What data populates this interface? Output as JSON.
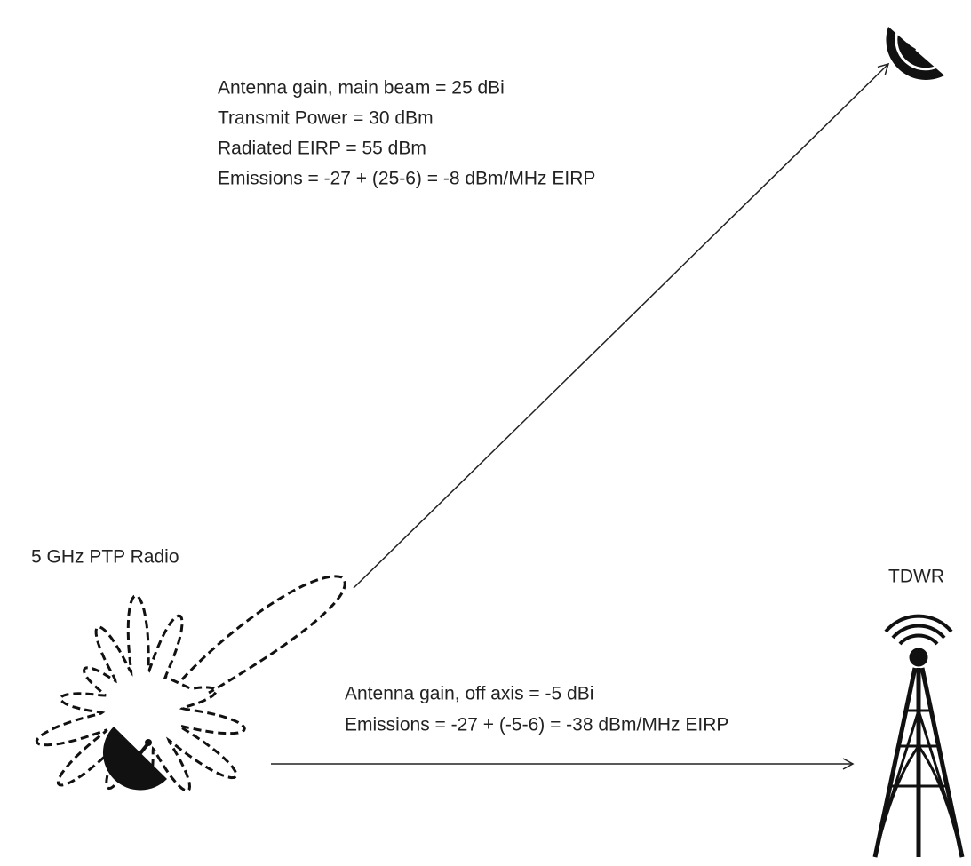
{
  "main_beam": {
    "lines": [
      "Antenna gain, main beam = 25 dBi",
      "Transmit Power = 30 dBm",
      "Radiated EIRP = 55 dBm",
      "Emissions = -27 + (25-6) = -8 dBm/MHz EIRP"
    ]
  },
  "radio": {
    "label": "5 GHz PTP Radio"
  },
  "tdwr": {
    "label": "TDWR"
  },
  "off_axis": {
    "lines": [
      "Antenna gain, off axis = -5 dBi",
      "Emissions = -27 + (-5-6) = -38 dBm/MHz EIRP"
    ]
  }
}
